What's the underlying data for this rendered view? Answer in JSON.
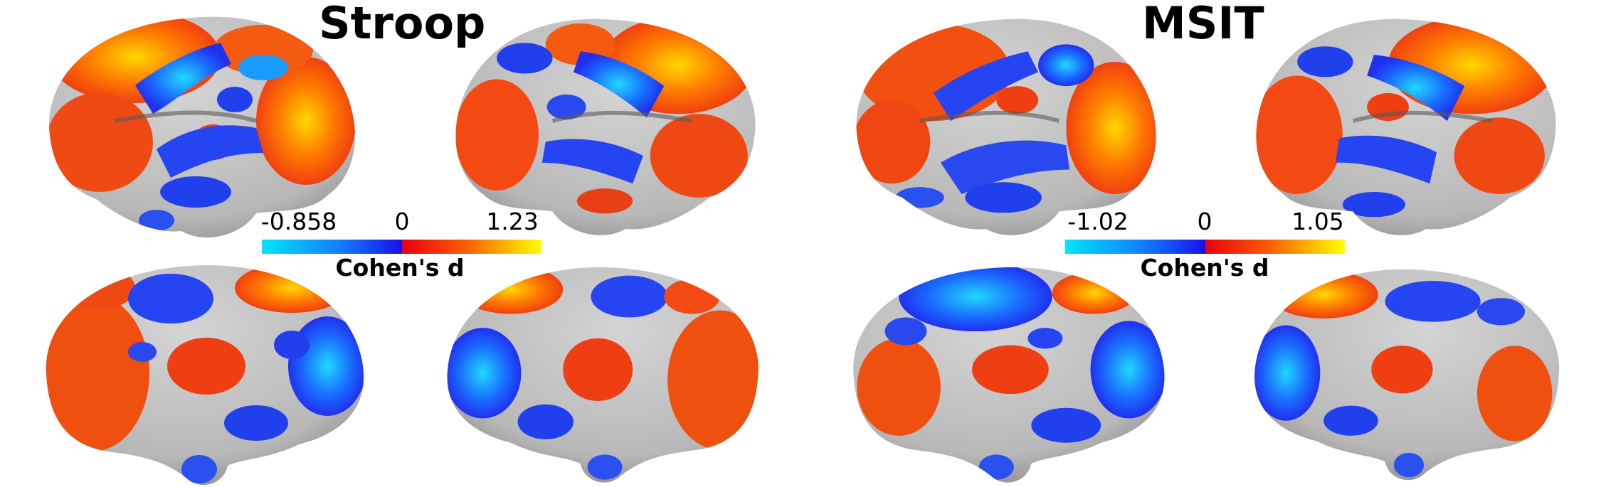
{
  "panels": [
    {
      "title": "Stroop",
      "colorbar": {
        "min": "-0.858",
        "zero": "0",
        "max": "1.23",
        "label": "Cohen's d"
      }
    },
    {
      "title": "MSIT",
      "colorbar": {
        "min": "-1.02",
        "zero": "0",
        "max": "1.05",
        "label": "Cohen's d"
      }
    }
  ],
  "colors": {
    "surface": "#bdbdbd",
    "negative_low": "#1a10e8",
    "negative_high": "#00e5ff",
    "positive_low": "#e8000e",
    "positive_high": "#ffff00"
  },
  "views": [
    "lateral-left",
    "lateral-right",
    "medial-left",
    "medial-right"
  ]
}
